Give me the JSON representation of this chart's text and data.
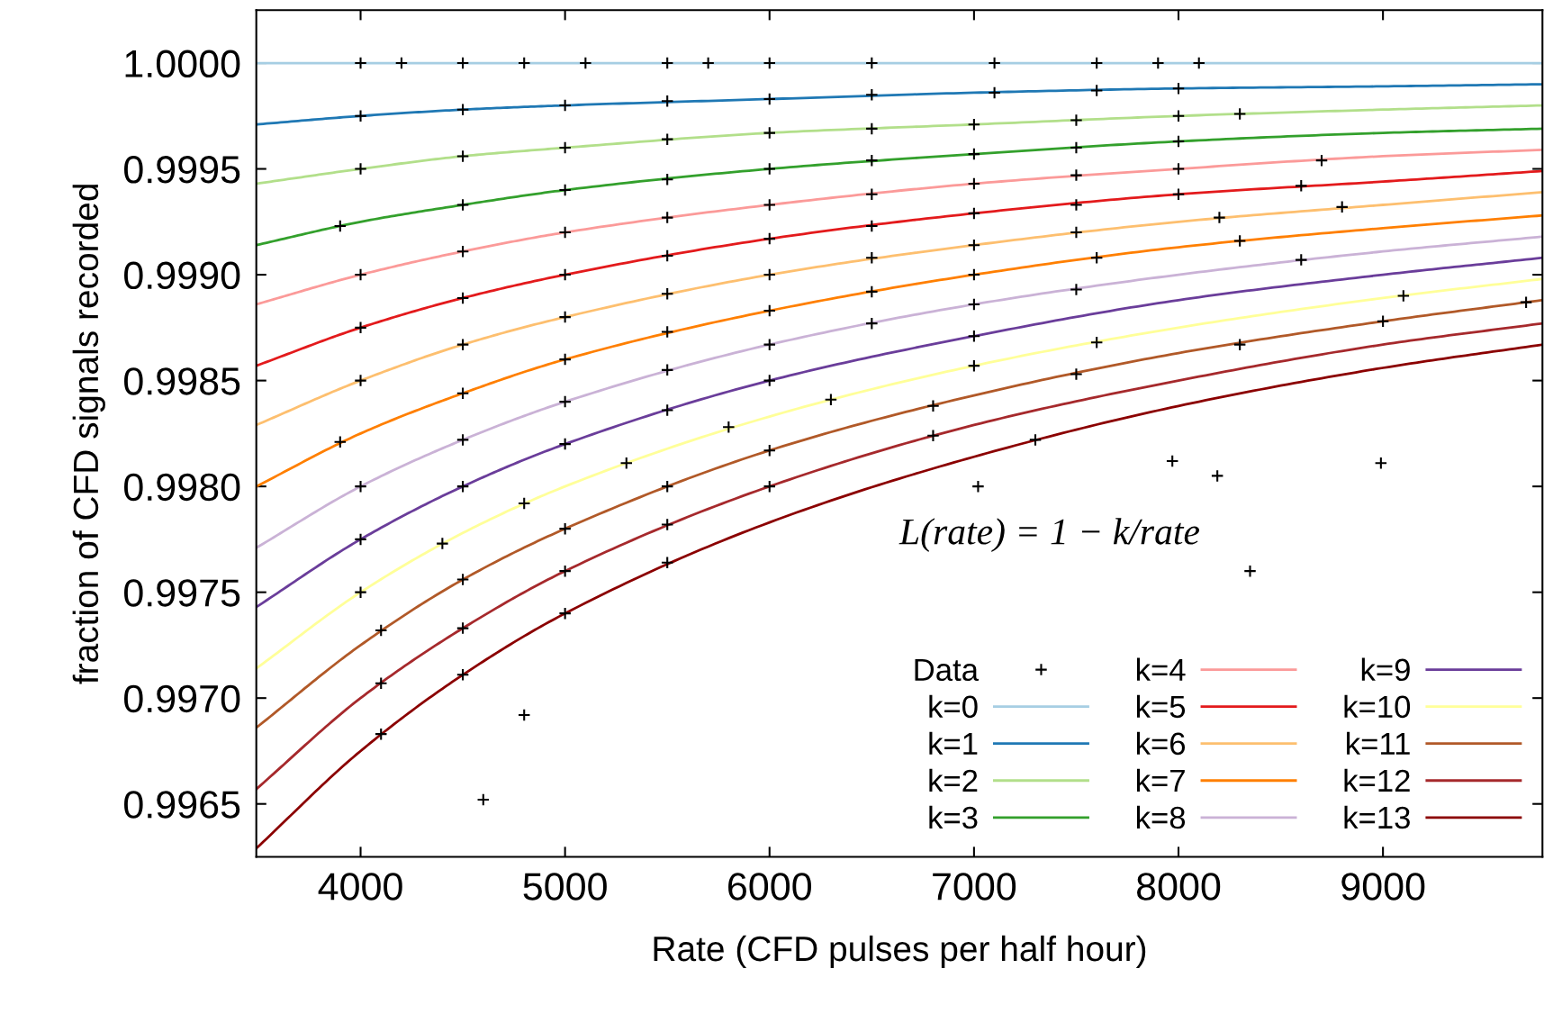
{
  "chart_data": {
    "type": "line",
    "xlabel": "Rate (CFD pulses per half hour)",
    "ylabel": "fraction of CFD signals recorded",
    "annotations": [
      "L(rate) = 1 − k/rate"
    ],
    "xlim": [
      3490,
      9780
    ],
    "xticks": [
      4000,
      5000,
      6000,
      7000,
      8000,
      9000
    ],
    "ylim": [
      0.99625,
      1.00025
    ],
    "yticks": [
      {
        "value": 0.9965,
        "label": "0.9965"
      },
      {
        "value": 0.997,
        "label": "0.9970"
      },
      {
        "value": 0.9975,
        "label": "0.9975"
      },
      {
        "value": 0.998,
        "label": "0.9980"
      },
      {
        "value": 0.9985,
        "label": "0.9985"
      },
      {
        "value": 0.999,
        "label": "0.9990"
      },
      {
        "value": 0.9995,
        "label": "0.9995"
      },
      {
        "value": 1.0,
        "label": "1.0000"
      }
    ],
    "grid": false,
    "legend": "bottom right",
    "line_style": "solid",
    "series": [
      {
        "name": "Data",
        "type": "scatter",
        "marker": "cross",
        "color": "#000000",
        "x": [
          4000,
          4200,
          4500,
          4800,
          5100,
          5500,
          5700,
          6000,
          6500,
          7100,
          7600,
          7900,
          8100,
          4000,
          4500,
          5000,
          5500,
          6000,
          6500,
          7100,
          7600,
          8000,
          4000,
          4500,
          5000,
          5500,
          6000,
          6500,
          7000,
          7500,
          8000,
          8300,
          3900,
          4500,
          5000,
          5500,
          6000,
          6500,
          7000,
          7500,
          8000,
          4000,
          4500,
          5000,
          5500,
          6000,
          6500,
          7000,
          7500,
          8000,
          8700,
          4000,
          4500,
          5000,
          5500,
          6000,
          6500,
          7000,
          7500,
          8000,
          8600,
          4000,
          4500,
          5000,
          5500,
          6000,
          6500,
          7000,
          7500,
          8200,
          8800,
          3900,
          4500,
          5000,
          5500,
          6000,
          6500,
          7000,
          7600,
          8300,
          4000,
          4500,
          5000,
          5500,
          6000,
          6500,
          7000,
          7500,
          8600,
          4000,
          4500,
          5000,
          5500,
          6000,
          7000,
          4000,
          4400,
          4800,
          5300,
          5800,
          6300,
          7000,
          7600,
          9100,
          4100,
          4500,
          5000,
          5500,
          6000,
          6800,
          7500,
          8300,
          9000,
          9700,
          4100,
          4500,
          5000,
          5500,
          6000,
          6800,
          4100,
          4500,
          5000,
          5500,
          7300,
          4600,
          4800,
          7020,
          7970,
          8190,
          8990,
          8350
        ],
        "values": [
          1.0,
          1.0,
          1.0,
          1.0,
          1.0,
          1.0,
          1.0,
          1.0,
          1.0,
          1.0,
          1.0,
          1.0,
          1.0,
          0.99975,
          0.99978,
          0.9998,
          0.99982,
          0.99983,
          0.99985,
          0.99986,
          0.99987,
          0.99988,
          0.9995,
          0.99956,
          0.9996,
          0.99964,
          0.99967,
          0.99969,
          0.99971,
          0.99973,
          0.99975,
          0.99976,
          0.99923,
          0.99933,
          0.9994,
          0.99945,
          0.9995,
          0.99954,
          0.99957,
          0.9996,
          0.99963,
          0.999,
          0.99911,
          0.9992,
          0.99927,
          0.99933,
          0.99938,
          0.99943,
          0.99947,
          0.9995,
          0.99954,
          0.99875,
          0.99889,
          0.999,
          0.99909,
          0.99917,
          0.99923,
          0.99929,
          0.99933,
          0.99938,
          0.99942,
          0.9985,
          0.99867,
          0.9988,
          0.99891,
          0.999,
          0.99908,
          0.99914,
          0.9992,
          0.99927,
          0.99932,
          0.99821,
          0.99844,
          0.9986,
          0.99873,
          0.99883,
          0.99892,
          0.999,
          0.99908,
          0.99916,
          0.998,
          0.99822,
          0.9984,
          0.99855,
          0.99867,
          0.99877,
          0.99886,
          0.99893,
          0.99907,
          0.99775,
          0.998,
          0.9982,
          0.99836,
          0.9985,
          0.99871,
          0.9975,
          0.99773,
          0.99792,
          0.99811,
          0.99828,
          0.99841,
          0.99857,
          0.99868,
          0.9989,
          0.99732,
          0.99756,
          0.9978,
          0.998,
          0.99817,
          0.99838,
          0.99853,
          0.99867,
          0.99878,
          0.99887,
          0.99707,
          0.99733,
          0.9976,
          0.99782,
          0.998,
          0.99824,
          0.99683,
          0.99711,
          0.9974,
          0.99764,
          0.99822,
          0.99652,
          0.99692,
          0.998,
          0.99812,
          0.99805,
          0.99811,
          0.9976
        ]
      },
      {
        "name": "k=0",
        "color": "#a6cee3",
        "x": [
          3490,
          4000,
          4500,
          5000,
          6000,
          7000,
          8000,
          9000,
          9780
        ],
        "values": [
          1.0,
          1.0,
          1.0,
          1.0,
          1.0,
          1.0,
          1.0,
          1.0,
          1.0
        ]
      },
      {
        "name": "k=1",
        "color": "#1f78b4",
        "x": [
          3490,
          4000,
          4500,
          5000,
          6000,
          7000,
          8000,
          9000,
          9780
        ],
        "values": [
          0.99971,
          0.99975,
          0.99978,
          0.9998,
          0.99983,
          0.99986,
          0.99988,
          0.99989,
          0.9999
        ]
      },
      {
        "name": "k=2",
        "color": "#b2df8a",
        "x": [
          3490,
          4000,
          4500,
          5000,
          6000,
          7000,
          8000,
          9000,
          9780
        ],
        "values": [
          0.99943,
          0.9995,
          0.99956,
          0.9996,
          0.99967,
          0.99971,
          0.99975,
          0.99978,
          0.9998
        ]
      },
      {
        "name": "k=3",
        "color": "#33a02c",
        "x": [
          3490,
          4000,
          4500,
          5000,
          6000,
          7000,
          8000,
          9000,
          9780
        ],
        "values": [
          0.99914,
          0.99925,
          0.99933,
          0.9994,
          0.9995,
          0.99957,
          0.99963,
          0.99967,
          0.99969
        ]
      },
      {
        "name": "k=4",
        "color": "#fb9a99",
        "x": [
          3490,
          4000,
          4500,
          5000,
          6000,
          7000,
          8000,
          9000,
          9780
        ],
        "values": [
          0.99886,
          0.999,
          0.99911,
          0.9992,
          0.99933,
          0.99943,
          0.9995,
          0.99956,
          0.99959
        ]
      },
      {
        "name": "k=5",
        "color": "#e31a1c",
        "x": [
          3490,
          4000,
          4500,
          5000,
          6000,
          7000,
          8000,
          9000,
          9780
        ],
        "values": [
          0.99857,
          0.99875,
          0.99889,
          0.999,
          0.99917,
          0.99929,
          0.99938,
          0.99944,
          0.99949
        ]
      },
      {
        "name": "k=6",
        "color": "#fdbf6f",
        "x": [
          3490,
          4000,
          4500,
          5000,
          6000,
          7000,
          8000,
          9000,
          9780
        ],
        "values": [
          0.99829,
          0.9985,
          0.99867,
          0.9988,
          0.999,
          0.99914,
          0.99925,
          0.99933,
          0.99939
        ]
      },
      {
        "name": "k=7",
        "color": "#ff7f00",
        "x": [
          3490,
          4000,
          4500,
          5000,
          6000,
          7000,
          8000,
          9000,
          9780
        ],
        "values": [
          0.998,
          0.99825,
          0.99844,
          0.9986,
          0.99883,
          0.999,
          0.99913,
          0.99922,
          0.99928
        ]
      },
      {
        "name": "k=8",
        "color": "#cab2d6",
        "x": [
          3490,
          4000,
          4500,
          5000,
          6000,
          7000,
          8000,
          9000,
          9780
        ],
        "values": [
          0.99771,
          0.998,
          0.99822,
          0.9984,
          0.99867,
          0.99886,
          0.999,
          0.99911,
          0.99918
        ]
      },
      {
        "name": "k=9",
        "color": "#6a3d9a",
        "x": [
          3490,
          4000,
          4500,
          5000,
          6000,
          7000,
          8000,
          9000,
          9780
        ],
        "values": [
          0.99743,
          0.99775,
          0.998,
          0.9982,
          0.9985,
          0.99871,
          0.99888,
          0.999,
          0.99908
        ]
      },
      {
        "name": "k=10",
        "color": "#ffff99",
        "x": [
          3490,
          4000,
          4500,
          5000,
          6000,
          7000,
          8000,
          9000,
          9780
        ],
        "values": [
          0.99714,
          0.9975,
          0.99778,
          0.998,
          0.99833,
          0.99857,
          0.99875,
          0.99889,
          0.99898
        ]
      },
      {
        "name": "k=11",
        "color": "#b15928",
        "x": [
          3490,
          4000,
          4500,
          5000,
          6000,
          7000,
          8000,
          9000,
          9780
        ],
        "values": [
          0.99686,
          0.99725,
          0.99756,
          0.9978,
          0.99817,
          0.99843,
          0.99863,
          0.99878,
          0.99888
        ]
      },
      {
        "name": "k=12",
        "color": "#a6292c",
        "x": [
          3490,
          4000,
          4500,
          5000,
          6000,
          7000,
          8000,
          9000,
          9780
        ],
        "values": [
          0.99657,
          0.997,
          0.99733,
          0.9976,
          0.998,
          0.99829,
          0.9985,
          0.99867,
          0.99877
        ]
      },
      {
        "name": "k=13",
        "color": "#8b0000",
        "x": [
          3490,
          4000,
          4500,
          5000,
          6000,
          7000,
          8000,
          9000,
          9780
        ],
        "values": [
          0.99629,
          0.99675,
          0.99711,
          0.9974,
          0.99783,
          0.99814,
          0.99838,
          0.99856,
          0.99867
        ]
      }
    ]
  }
}
